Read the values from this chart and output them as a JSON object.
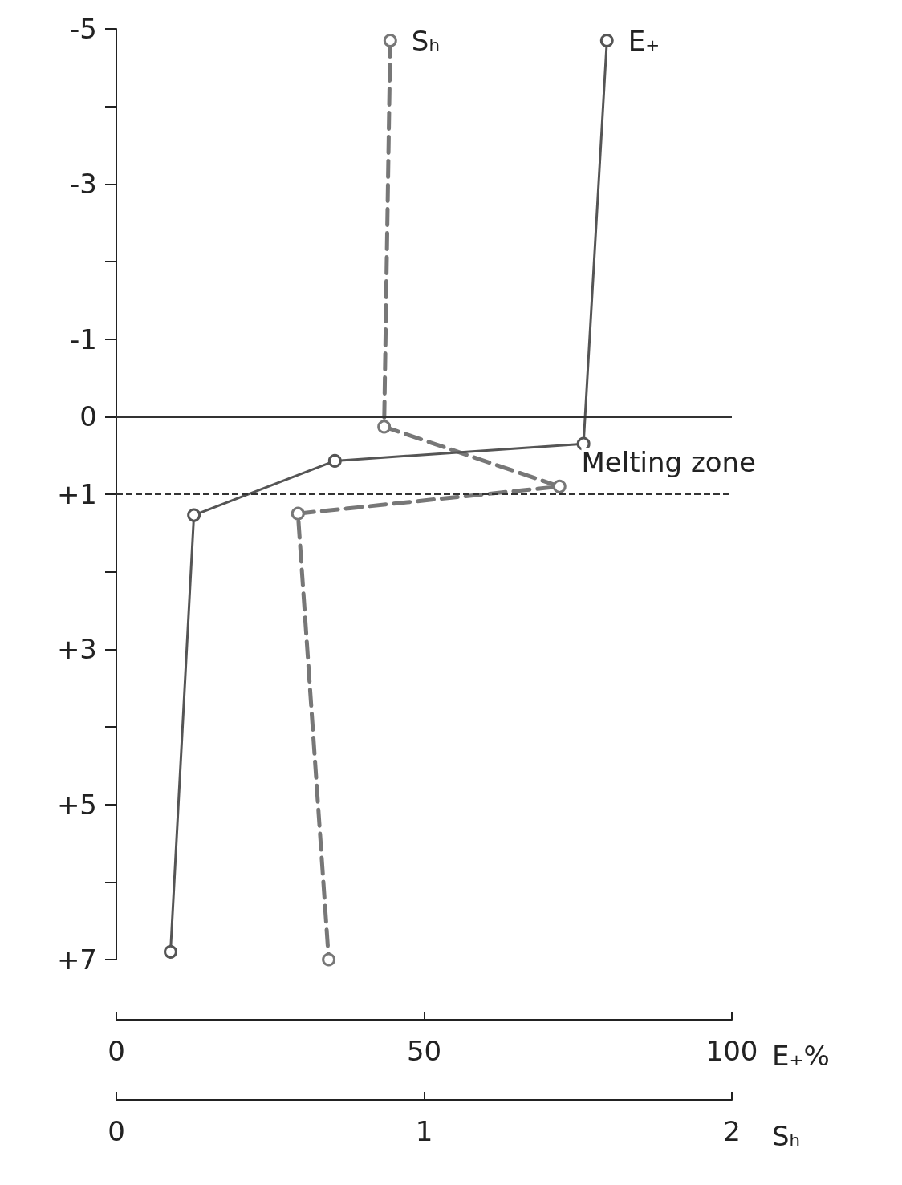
{
  "chart_data": {
    "type": "line",
    "xlabel": "E₊%",
    "x2label": "Sₕ",
    "xlim": [
      0,
      100
    ],
    "xticks": [
      0,
      50,
      100
    ],
    "x2lim": [
      0,
      2
    ],
    "x2ticks": [
      0,
      1,
      2
    ],
    "ylim": [
      7,
      -5
    ],
    "yticks": [
      {
        "value": -5,
        "label": "-5"
      },
      {
        "value": -4,
        "label": null
      },
      {
        "value": -3,
        "label": "-3"
      },
      {
        "value": -2,
        "label": null
      },
      {
        "value": -1,
        "label": "-1"
      },
      0,
      {
        "value": 1,
        "label": "+1"
      },
      {
        "value": 2,
        "label": null
      },
      {
        "value": 3,
        "label": "+3"
      },
      {
        "value": 4,
        "label": null
      },
      {
        "value": 5,
        "label": "+5"
      },
      {
        "value": 6,
        "label": null
      },
      {
        "value": 7,
        "label": "+7"
      }
    ],
    "series": [
      {
        "name": "Sₕ",
        "axis": "x2",
        "color": "#777777",
        "line_style": "dashed",
        "x": [
          0.89,
          0.87,
          1.44,
          0.59,
          0.69
        ],
        "values": [
          -4.85,
          0.13,
          0.9,
          1.25,
          7.0
        ]
      },
      {
        "name": "E₊",
        "color": "#555555",
        "line_style": "solid",
        "x": [
          79.7,
          75.9,
          35.5,
          12.6,
          8.8
        ],
        "values": [
          -4.85,
          0.35,
          0.57,
          1.27,
          6.9
        ]
      }
    ],
    "ref_lines": [
      {
        "axis": "y",
        "value": 0,
        "line_style": "solid"
      },
      {
        "axis": "y",
        "value": 1,
        "line_style": "dashed"
      }
    ],
    "annotations": [
      "Melting zone"
    ],
    "marker": "circle"
  }
}
